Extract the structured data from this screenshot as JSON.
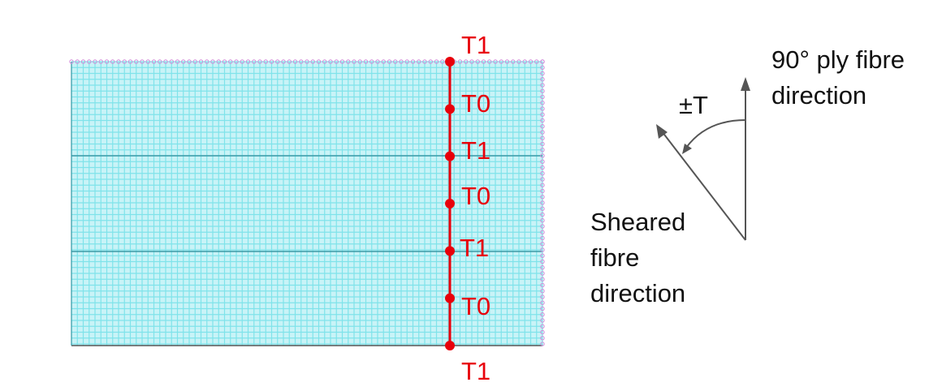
{
  "mesh": {
    "fine_line_color": "#7fe3ea",
    "fill_color": "#c9f3f7",
    "major_line_color": "#3a9aa6",
    "edge_node_color": "#d08ad8"
  },
  "thickness_line": {
    "color": "#e8000b",
    "labels": [
      "T1",
      "T0",
      "T1",
      "T0",
      "T1",
      "T0",
      "T1"
    ]
  },
  "direction_sketch": {
    "ply_label": [
      "90° ply fibre",
      "direction"
    ],
    "angle_label": "±T",
    "sheared_label": [
      "Sheared",
      "fibre",
      "direction"
    ],
    "arrow_color": "#555555"
  }
}
